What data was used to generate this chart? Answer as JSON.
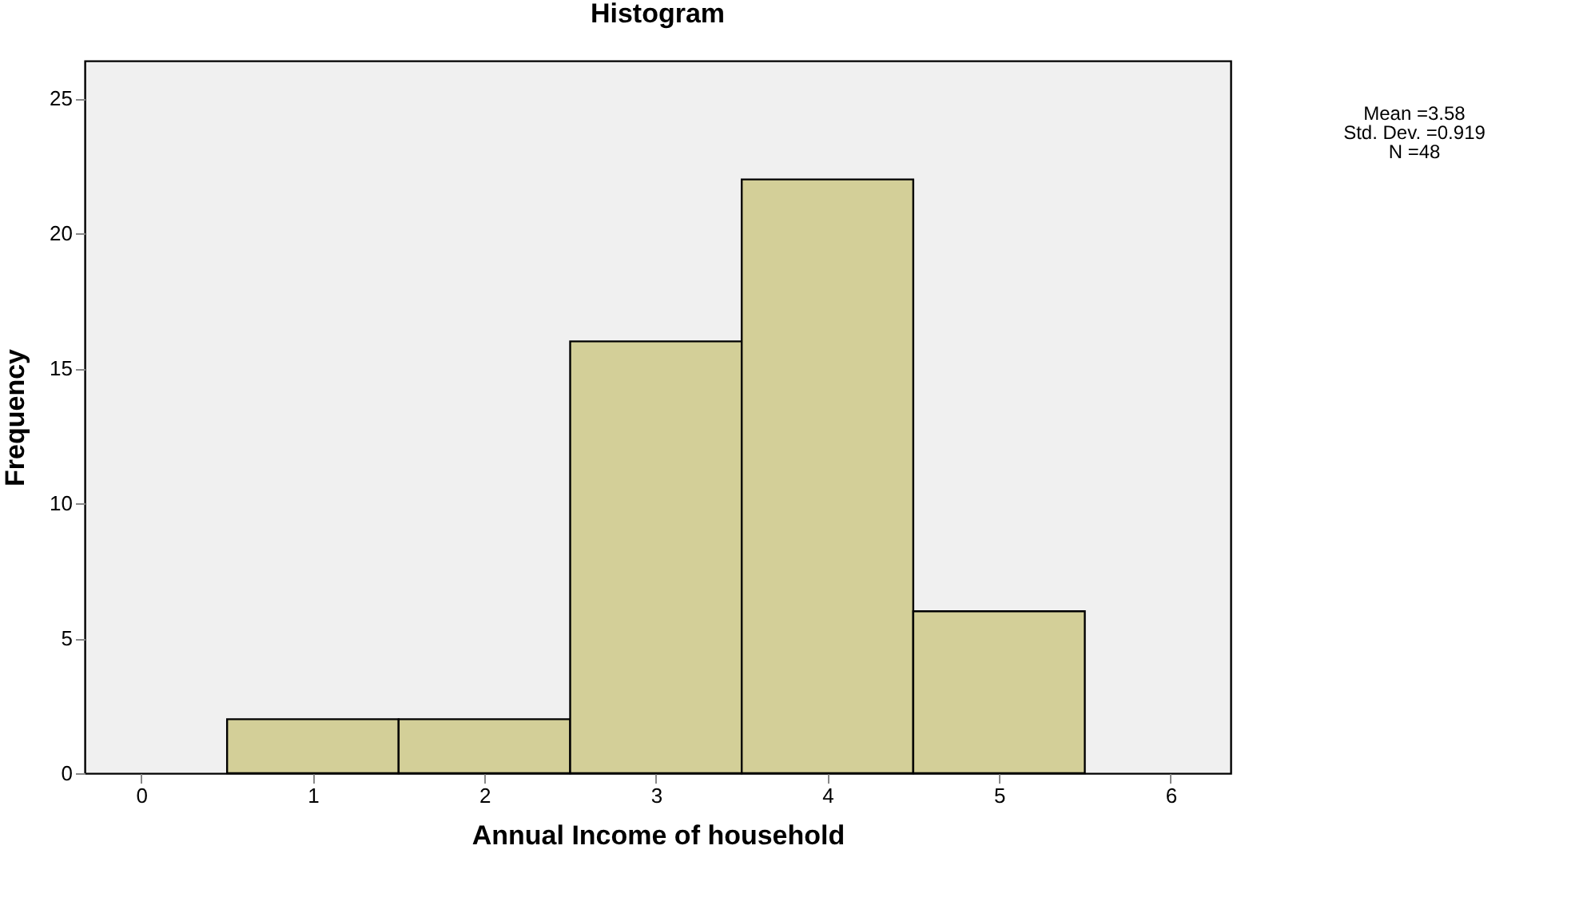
{
  "chart_data": {
    "type": "histogram",
    "title": "Histogram",
    "xlabel": "Annual Income of household",
    "ylabel": "Frequency",
    "bins": [
      0.5,
      1.5,
      2.5,
      3.5,
      4.5,
      5.5
    ],
    "values": [
      2,
      2,
      16,
      22,
      6
    ],
    "color": "#d3cf98",
    "xlim": [
      -0.33,
      6.35
    ],
    "xticks": [
      0,
      1,
      2,
      3,
      4,
      5,
      6
    ],
    "ylim": [
      0,
      26.4
    ],
    "yticks": [
      0,
      5,
      10,
      15,
      20,
      25
    ],
    "annotations": [
      "Mean =3.58",
      "Std. Dev. =0.919",
      "N =48"
    ]
  }
}
